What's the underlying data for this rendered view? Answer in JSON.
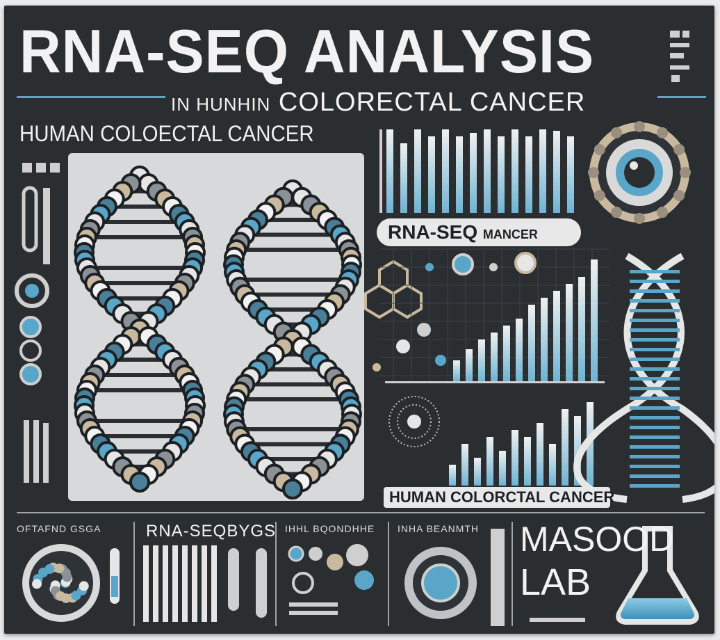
{
  "poster": {
    "title": "RNA-SEQ ANALYSIS",
    "subtitle_prefix": "IN HUNHIN",
    "subtitle_main": "COLORECTAL CANCER",
    "left_heading": "HUMAN COLOECTAL CANCER",
    "center_label_main": "RNA-SEQ",
    "center_label_small": "MANCER",
    "bottom_banner": "HUMAN COLORCTAL CANCER",
    "bottom_label_1": "OFTAFND GSGA",
    "bottom_label_2": "RNA-SEQBYGS",
    "bottom_label_3": "IHHL BQONDHHE",
    "bottom_label_4": "INHA BEANMTH",
    "lab_name_line1": "MASOOD",
    "lab_name_line2": "LAB"
  },
  "colors": {
    "background": "#2b2e31",
    "accent_blue": "#5aa6c8",
    "light": "#e6e6e6",
    "beige": "#cbbfa8"
  },
  "icons": [
    "dna-helix-icon",
    "bar-chart-icon",
    "cell-icon",
    "molecule-icon",
    "flask-icon",
    "petri-dish-icon"
  ]
}
